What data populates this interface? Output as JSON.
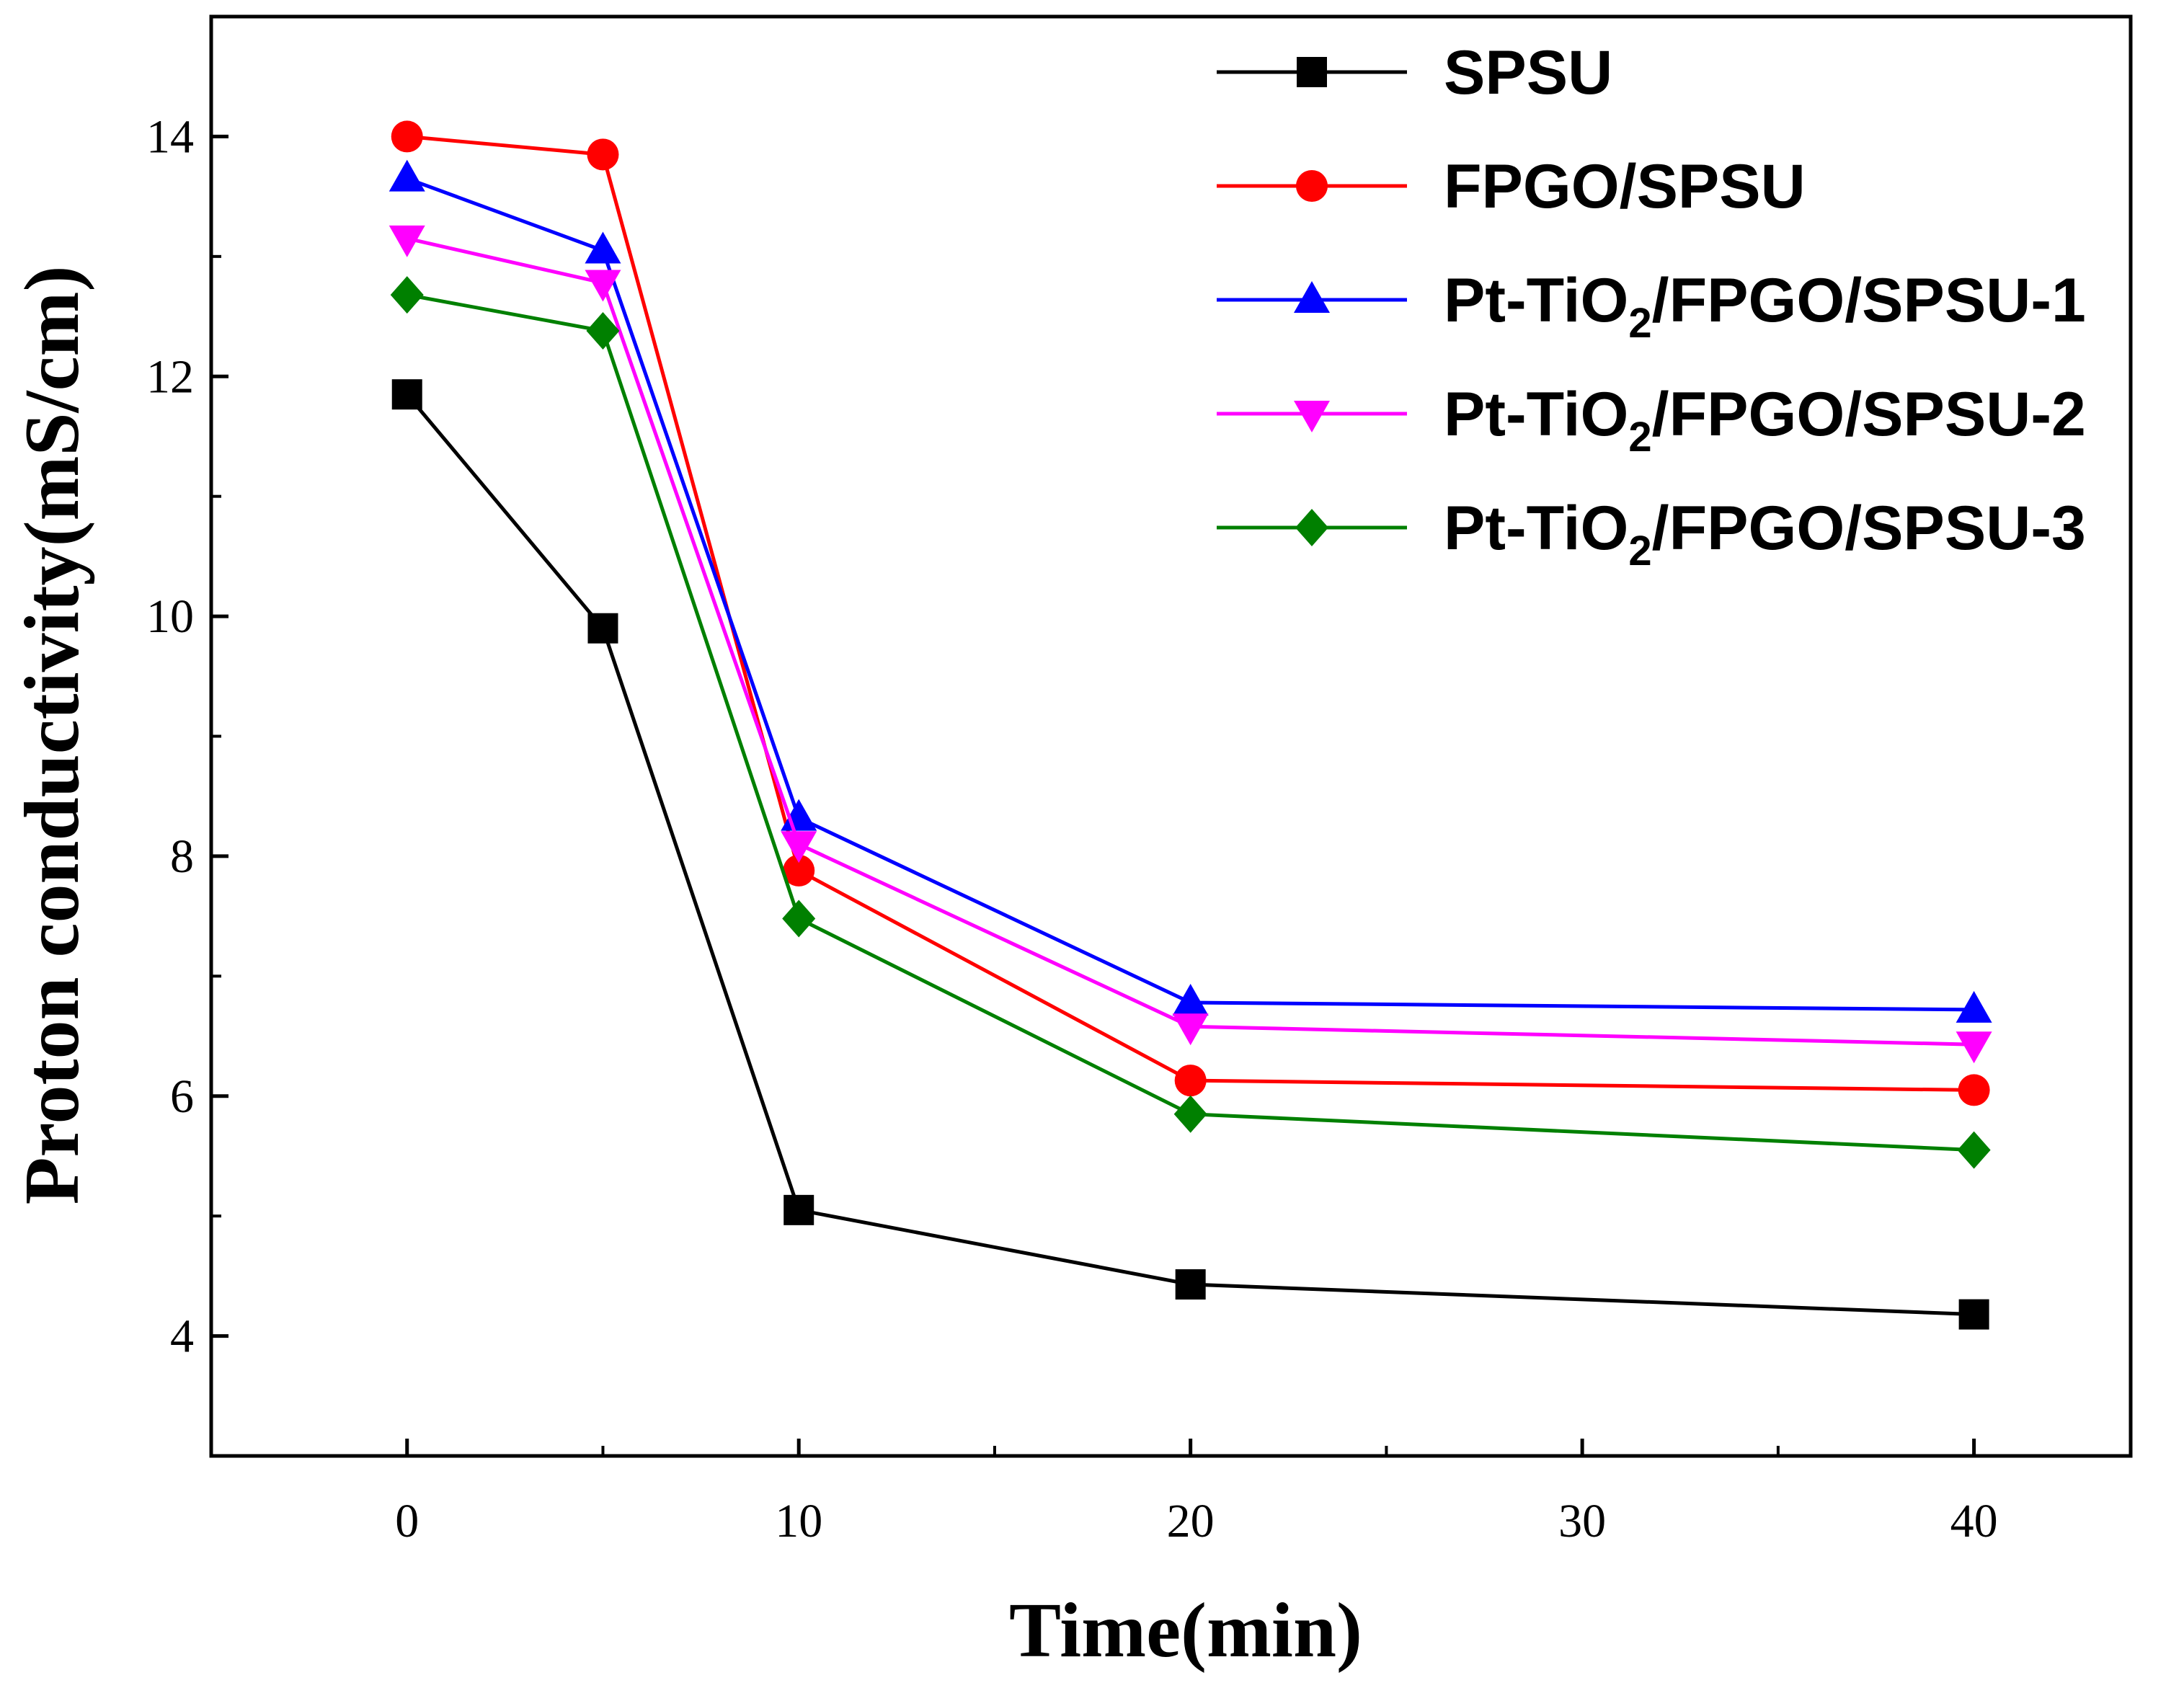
{
  "chart_data": {
    "type": "line",
    "title": "",
    "xlabel": "Time(min)",
    "ylabel": "Proton conductivity(mS/cm)",
    "xlim": [
      -5,
      44
    ],
    "ylim": [
      3.0,
      15.0
    ],
    "x_ticks": [
      0,
      10,
      20,
      30,
      40
    ],
    "y_ticks": [
      4,
      6,
      8,
      10,
      12,
      14
    ],
    "x_minor_ticks": [
      5,
      15,
      25,
      35
    ],
    "y_minor_ticks": [
      5,
      7,
      9,
      11,
      13
    ],
    "grid": false,
    "legend_position": "top-right",
    "x": [
      0,
      5,
      10,
      20,
      40
    ],
    "series": [
      {
        "name": "SPSU",
        "label_parts": [
          "SPSU"
        ],
        "color": "#000000",
        "marker": "square",
        "values": [
          11.85,
          9.9,
          5.05,
          4.43,
          4.18
        ]
      },
      {
        "name": "FPGO/SPSU",
        "label_parts": [
          "FPGO/SPSU"
        ],
        "color": "#ff0000",
        "marker": "circle",
        "values": [
          14.0,
          13.85,
          7.88,
          6.13,
          6.05
        ]
      },
      {
        "name": "Pt-TiO2/FPGO/SPSU-1",
        "label_parts": [
          "Pt-TiO",
          "2",
          "/FPGO/SPSU-1"
        ],
        "color": "#0000ff",
        "marker": "triangle-up",
        "values": [
          13.65,
          13.05,
          8.32,
          6.78,
          6.72
        ]
      },
      {
        "name": "Pt-TiO2/FPGO/SPSU-2",
        "label_parts": [
          "Pt-TiO",
          "2",
          "/FPGO/SPSU-2"
        ],
        "color": "#ff00ff",
        "marker": "triangle-down",
        "values": [
          13.15,
          12.78,
          8.1,
          6.58,
          6.43
        ]
      },
      {
        "name": "Pt-TiO2/FPGO/SPSU-3",
        "label_parts": [
          "Pt-TiO",
          "2",
          "/FPGO/SPSU-3"
        ],
        "color": "#008000",
        "marker": "diamond",
        "values": [
          12.68,
          12.38,
          7.48,
          5.85,
          5.55
        ]
      }
    ]
  }
}
